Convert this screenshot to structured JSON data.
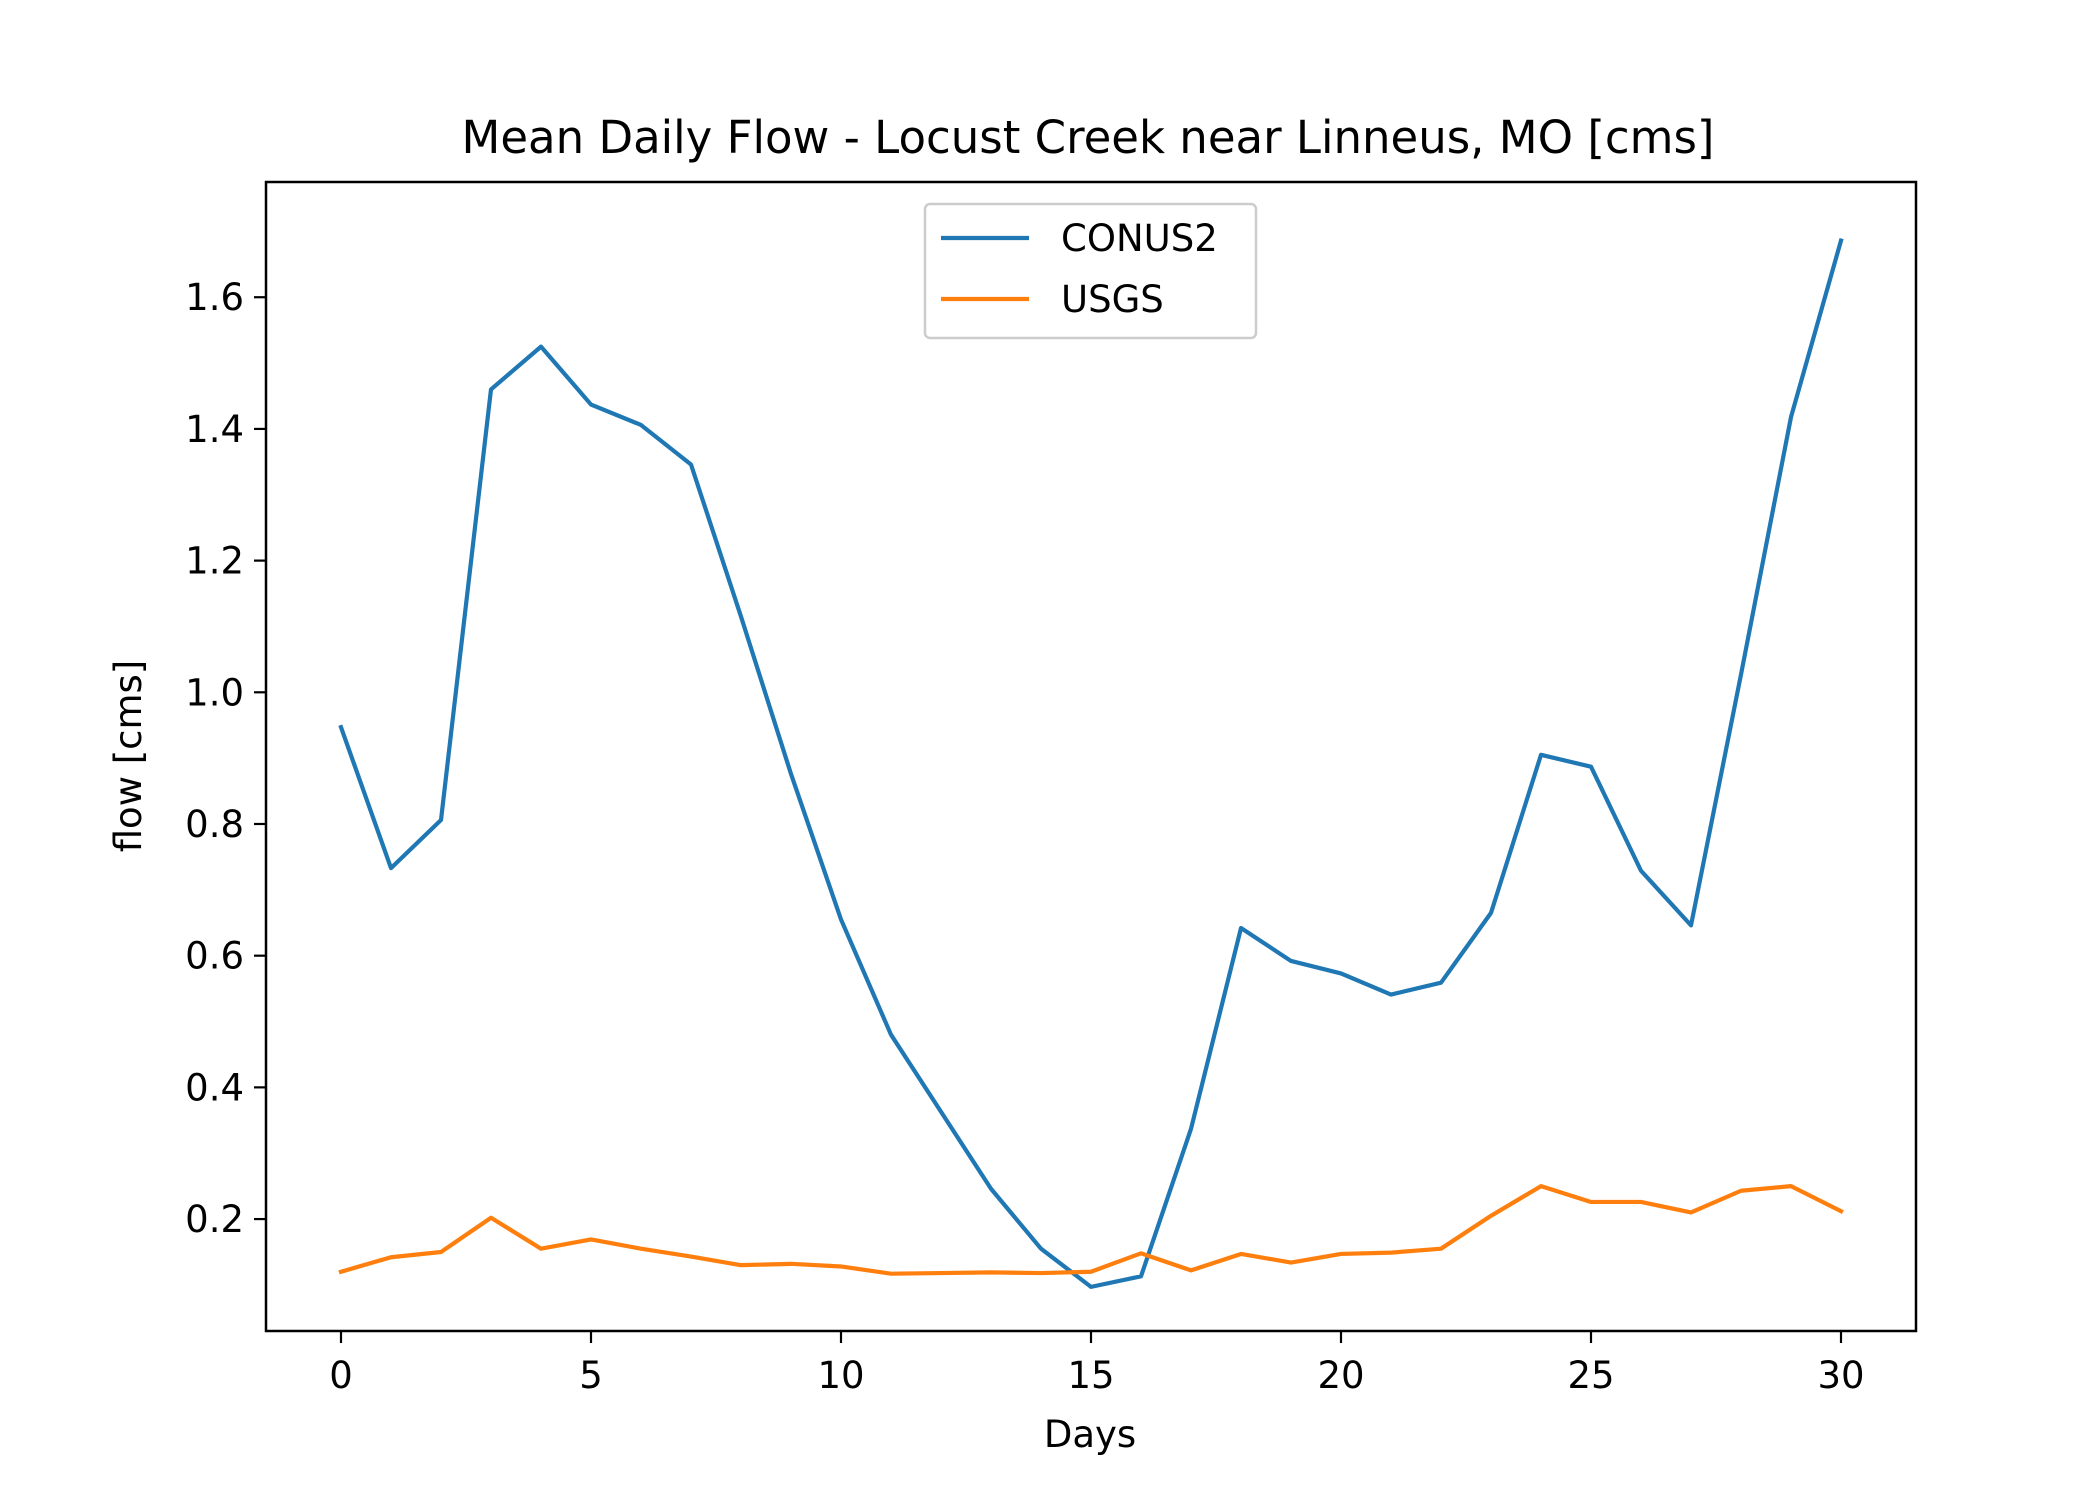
{
  "chart_data": {
    "type": "line",
    "title": "Mean Daily Flow - Locust Creek near Linneus, MO [cms]",
    "xlabel": "Days",
    "ylabel": "flow [cms]",
    "xlim": [
      -1.5,
      31.5
    ],
    "ylim": [
      0.03,
      1.775
    ],
    "xticks": [
      0,
      5,
      10,
      15,
      20,
      25,
      30
    ],
    "yticks": [
      0.2,
      0.4,
      0.6,
      0.8,
      1.0,
      1.2,
      1.4,
      1.6
    ],
    "grid": false,
    "legend_position": "upper center",
    "x": [
      0,
      1,
      2,
      3,
      4,
      5,
      6,
      7,
      8,
      9,
      10,
      11,
      12,
      13,
      14,
      15,
      16,
      17,
      18,
      19,
      20,
      21,
      22,
      23,
      24,
      25,
      26,
      27,
      28,
      29,
      30
    ],
    "series": [
      {
        "name": "CONUS2",
        "color": "#1f77b4",
        "values": [
          0.947,
          0.733,
          0.806,
          1.46,
          1.525,
          1.437,
          1.406,
          1.346,
          1.115,
          0.876,
          0.655,
          0.48,
          0.363,
          0.246,
          0.155,
          0.097,
          0.113,
          0.337,
          0.642,
          0.592,
          0.573,
          0.541,
          0.559,
          0.665,
          0.905,
          0.887,
          0.729,
          0.646,
          1.027,
          1.418,
          1.686
        ]
      },
      {
        "name": "USGS",
        "color": "#ff7f0e",
        "values": [
          0.12,
          0.142,
          0.15,
          0.202,
          0.155,
          0.169,
          0.155,
          0.143,
          0.13,
          0.132,
          0.128,
          0.117,
          0.118,
          0.119,
          0.118,
          0.12,
          0.148,
          0.122,
          0.147,
          0.134,
          0.147,
          0.149,
          0.155,
          0.205,
          0.25,
          0.226,
          0.226,
          0.21,
          0.243,
          0.25,
          0.212
        ]
      }
    ]
  }
}
